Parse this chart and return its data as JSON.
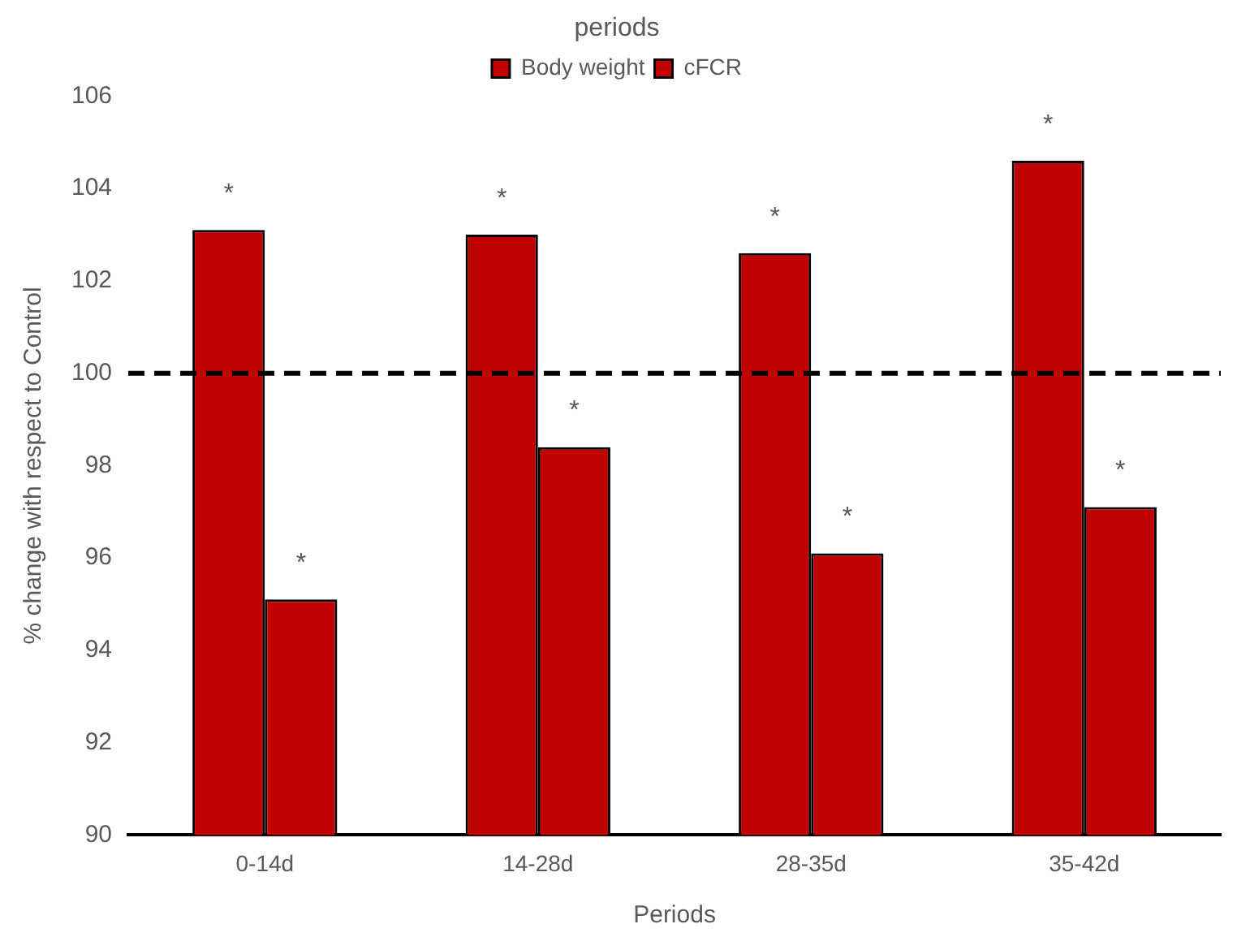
{
  "chart_data": {
    "type": "bar",
    "title": "periods",
    "xlabel": "Periods",
    "ylabel": "% change with respect to Control",
    "categories": [
      "0-14d",
      "14-28d",
      "28-35d",
      "35-42d"
    ],
    "series": [
      {
        "name": "Body weight",
        "color": "#c00000",
        "values": [
          103.1,
          103.0,
          102.6,
          104.6
        ]
      },
      {
        "name": "cFCR",
        "color": "#c00000",
        "values": [
          95.1,
          98.4,
          96.1,
          97.1
        ]
      }
    ],
    "ylim": [
      90,
      106
    ],
    "yticks": [
      90,
      92,
      94,
      96,
      98,
      100,
      102,
      104,
      106
    ],
    "grid": false,
    "legend": "top",
    "ref_lines": [
      {
        "axis": "y",
        "value": 100,
        "color": "#000000",
        "line_style": "dashed"
      }
    ],
    "annotations": [
      "*",
      "*",
      "*",
      "*",
      "*",
      "*",
      "*",
      "*"
    ]
  }
}
